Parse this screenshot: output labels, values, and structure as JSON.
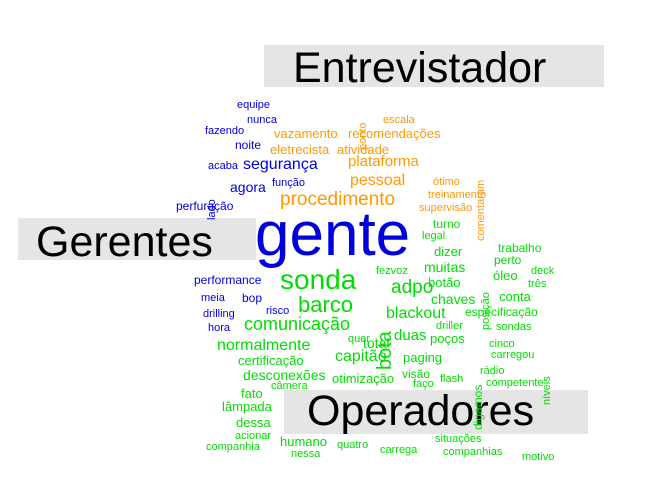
{
  "colors": {
    "entrevistador": "#ff9900",
    "gerentes": "#0000dd",
    "operadores": "#00dd00",
    "header_background": "#e5e5e5",
    "header_text": "#000000"
  },
  "groups": {
    "entrevistador": {
      "label": "Entrevistador"
    },
    "gerentes": {
      "label": "Gerentes"
    },
    "operadores": {
      "label": "Operadores"
    }
  },
  "words": [
    {
      "text": "equipe",
      "group": "gerentes"
    },
    {
      "text": "nunca",
      "group": "gerentes"
    },
    {
      "text": "fazendo",
      "group": "gerentes"
    },
    {
      "text": "noite",
      "group": "gerentes"
    },
    {
      "text": "acaba",
      "group": "gerentes"
    },
    {
      "text": "segurança",
      "group": "gerentes"
    },
    {
      "text": "lado",
      "group": "gerentes"
    },
    {
      "text": "agora",
      "group": "gerentes"
    },
    {
      "text": "função",
      "group": "gerentes"
    },
    {
      "text": "perfuração",
      "group": "gerentes"
    },
    {
      "text": "gente",
      "group": "gerentes"
    },
    {
      "text": "performance",
      "group": "gerentes"
    },
    {
      "text": "meia",
      "group": "gerentes"
    },
    {
      "text": "bop",
      "group": "gerentes"
    },
    {
      "text": "drilling",
      "group": "gerentes"
    },
    {
      "text": "risco",
      "group": "gerentes"
    },
    {
      "text": "hora",
      "group": "gerentes"
    },
    {
      "text": "ponto",
      "group": "entrevistador"
    },
    {
      "text": "escala",
      "group": "entrevistador"
    },
    {
      "text": "vazamento",
      "group": "entrevistador"
    },
    {
      "text": "recomendações",
      "group": "entrevistador"
    },
    {
      "text": "eletrecista",
      "group": "entrevistador"
    },
    {
      "text": "atividade",
      "group": "entrevistador"
    },
    {
      "text": "plataforma",
      "group": "entrevistador"
    },
    {
      "text": "comentaram",
      "group": "entrevistador"
    },
    {
      "text": "pessoal",
      "group": "entrevistador"
    },
    {
      "text": "ótimo",
      "group": "entrevistador"
    },
    {
      "text": "procedimento",
      "group": "entrevistador"
    },
    {
      "text": "treinamento",
      "group": "entrevistador"
    },
    {
      "text": "supervisão",
      "group": "entrevistador"
    },
    {
      "text": "turno",
      "group": "operadores"
    },
    {
      "text": "legal",
      "group": "operadores"
    },
    {
      "text": "posição",
      "group": "operadores"
    },
    {
      "text": "trabalho",
      "group": "operadores"
    },
    {
      "text": "dizer",
      "group": "operadores"
    },
    {
      "text": "perto",
      "group": "operadores"
    },
    {
      "text": "sonda",
      "group": "operadores"
    },
    {
      "text": "fezvoz",
      "group": "operadores"
    },
    {
      "text": "muitas",
      "group": "operadores"
    },
    {
      "text": "óleo",
      "group": "operadores"
    },
    {
      "text": "deck",
      "group": "operadores"
    },
    {
      "text": "adpo",
      "group": "operadores"
    },
    {
      "text": "botão",
      "group": "operadores"
    },
    {
      "text": "três",
      "group": "operadores"
    },
    {
      "text": "barco",
      "group": "operadores"
    },
    {
      "text": "bota",
      "group": "operadores"
    },
    {
      "text": "chaves",
      "group": "operadores"
    },
    {
      "text": "conta",
      "group": "operadores"
    },
    {
      "text": "blackout",
      "group": "operadores"
    },
    {
      "text": "especificação",
      "group": "operadores"
    },
    {
      "text": "comunicação",
      "group": "operadores"
    },
    {
      "text": "driller",
      "group": "operadores"
    },
    {
      "text": "sondas",
      "group": "operadores"
    },
    {
      "text": "quer",
      "group": "operadores"
    },
    {
      "text": "duas",
      "group": "operadores"
    },
    {
      "text": "poços",
      "group": "operadores"
    },
    {
      "text": "normalmente",
      "group": "operadores"
    },
    {
      "text": "total",
      "group": "operadores"
    },
    {
      "text": "digamos",
      "group": "operadores"
    },
    {
      "text": "cinco",
      "group": "operadores"
    },
    {
      "text": "níveis",
      "group": "operadores"
    },
    {
      "text": "capitão",
      "group": "operadores"
    },
    {
      "text": "paging",
      "group": "operadores"
    },
    {
      "text": "carregou",
      "group": "operadores"
    },
    {
      "text": "certificação",
      "group": "operadores"
    },
    {
      "text": "desconexões",
      "group": "operadores"
    },
    {
      "text": "visão",
      "group": "operadores"
    },
    {
      "text": "rádio",
      "group": "operadores"
    },
    {
      "text": "otimização",
      "group": "operadores"
    },
    {
      "text": "faço",
      "group": "operadores"
    },
    {
      "text": "flash",
      "group": "operadores"
    },
    {
      "text": "competente",
      "group": "operadores"
    },
    {
      "text": "câmera",
      "group": "operadores"
    },
    {
      "text": "fato",
      "group": "operadores"
    },
    {
      "text": "lâmpada",
      "group": "operadores"
    },
    {
      "text": "dessa",
      "group": "operadores"
    },
    {
      "text": "acionar",
      "group": "operadores"
    },
    {
      "text": "humano",
      "group": "operadores"
    },
    {
      "text": "companhia",
      "group": "operadores"
    },
    {
      "text": "nessa",
      "group": "operadores"
    },
    {
      "text": "quatro",
      "group": "operadores"
    },
    {
      "text": "carrega",
      "group": "operadores"
    },
    {
      "text": "situações",
      "group": "operadores"
    },
    {
      "text": "companhias",
      "group": "operadores"
    },
    {
      "text": "motivo",
      "group": "operadores"
    }
  ]
}
